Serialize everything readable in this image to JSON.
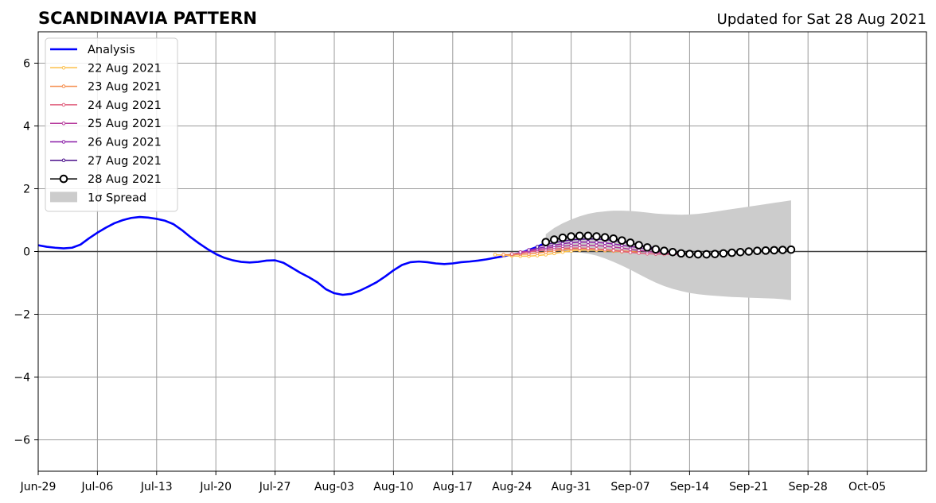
{
  "chart_data": {
    "type": "line",
    "title": "SCANDINAVIA PATTERN",
    "subtitle": "Updated for Sat 28 Aug 2021",
    "xlabel": "",
    "ylabel": "",
    "xlim": [
      "2021-06-29",
      "2021-10-12"
    ],
    "ylim": [
      -7,
      7
    ],
    "x_ticks": [
      "Jun-29",
      "Jul-06",
      "Jul-13",
      "Jul-20",
      "Jul-27",
      "Aug-03",
      "Aug-10",
      "Aug-17",
      "Aug-24",
      "Aug-31",
      "Sep-07",
      "Sep-14",
      "Sep-21",
      "Sep-28",
      "Oct-05"
    ],
    "x_tick_dates": [
      "2021-06-29",
      "2021-07-06",
      "2021-07-13",
      "2021-07-20",
      "2021-07-27",
      "2021-08-03",
      "2021-08-10",
      "2021-08-17",
      "2021-08-24",
      "2021-08-31",
      "2021-09-07",
      "2021-09-14",
      "2021-09-21",
      "2021-09-28",
      "2021-10-05"
    ],
    "y_ticks": [
      -6,
      -4,
      -2,
      0,
      2,
      4,
      6
    ],
    "y_tick_labels": [
      "−6",
      "−4",
      "−2",
      "0",
      "2",
      "4",
      "6"
    ],
    "grid": true,
    "legend_position": "top-left",
    "analysis": {
      "name": "Analysis",
      "color": "#0000ff",
      "x": [
        "2021-06-29",
        "2021-06-30",
        "2021-07-01",
        "2021-07-02",
        "2021-07-03",
        "2021-07-04",
        "2021-07-05",
        "2021-07-06",
        "2021-07-07",
        "2021-07-08",
        "2021-07-09",
        "2021-07-10",
        "2021-07-11",
        "2021-07-12",
        "2021-07-13",
        "2021-07-14",
        "2021-07-15",
        "2021-07-16",
        "2021-07-17",
        "2021-07-18",
        "2021-07-19",
        "2021-07-20",
        "2021-07-21",
        "2021-07-22",
        "2021-07-23",
        "2021-07-24",
        "2021-07-25",
        "2021-07-26",
        "2021-07-27",
        "2021-07-28",
        "2021-07-29",
        "2021-07-30",
        "2021-07-31",
        "2021-08-01",
        "2021-08-02",
        "2021-08-03",
        "2021-08-04",
        "2021-08-05",
        "2021-08-06",
        "2021-08-07",
        "2021-08-08",
        "2021-08-09",
        "2021-08-10",
        "2021-08-11",
        "2021-08-12",
        "2021-08-13",
        "2021-08-14",
        "2021-08-15",
        "2021-08-16",
        "2021-08-17",
        "2021-08-18",
        "2021-08-19",
        "2021-08-20",
        "2021-08-21",
        "2021-08-22",
        "2021-08-23",
        "2021-08-24",
        "2021-08-25",
        "2021-08-26",
        "2021-08-27",
        "2021-08-28"
      ],
      "y": [
        0.2,
        0.15,
        0.12,
        0.1,
        0.12,
        0.22,
        0.42,
        0.6,
        0.76,
        0.9,
        1.0,
        1.07,
        1.1,
        1.08,
        1.04,
        0.98,
        0.87,
        0.68,
        0.46,
        0.26,
        0.08,
        -0.08,
        -0.2,
        -0.28,
        -0.33,
        -0.35,
        -0.33,
        -0.29,
        -0.28,
        -0.36,
        -0.52,
        -0.68,
        -0.82,
        -0.98,
        -1.2,
        -1.33,
        -1.38,
        -1.35,
        -1.25,
        -1.12,
        -0.98,
        -0.8,
        -0.6,
        -0.43,
        -0.34,
        -0.32,
        -0.34,
        -0.38,
        -0.4,
        -0.38,
        -0.34,
        -0.32,
        -0.29,
        -0.25,
        -0.2,
        -0.15,
        -0.1,
        -0.05,
        0.05,
        0.15,
        0.28
      ]
    },
    "spread": {
      "name": "1σ Spread",
      "color": "#cccccc",
      "x": [
        "2021-08-28",
        "2021-08-29",
        "2021-08-30",
        "2021-08-31",
        "2021-09-01",
        "2021-09-02",
        "2021-09-03",
        "2021-09-04",
        "2021-09-05",
        "2021-09-06",
        "2021-09-07",
        "2021-09-08",
        "2021-09-09",
        "2021-09-10",
        "2021-09-11",
        "2021-09-12",
        "2021-09-13",
        "2021-09-14",
        "2021-09-15",
        "2021-09-16",
        "2021-09-17",
        "2021-09-18",
        "2021-09-19",
        "2021-09-20",
        "2021-09-21",
        "2021-09-22",
        "2021-09-23",
        "2021-09-24",
        "2021-09-25",
        "2021-09-26"
      ],
      "upper": [
        0.55,
        0.75,
        0.9,
        1.02,
        1.12,
        1.2,
        1.25,
        1.28,
        1.3,
        1.3,
        1.29,
        1.27,
        1.24,
        1.21,
        1.19,
        1.18,
        1.17,
        1.18,
        1.2,
        1.23,
        1.27,
        1.31,
        1.35,
        1.39,
        1.43,
        1.47,
        1.51,
        1.55,
        1.59,
        1.63
      ],
      "lower": [
        0.02,
        0.02,
        0.02,
        0.0,
        -0.03,
        -0.07,
        -0.13,
        -0.22,
        -0.33,
        -0.45,
        -0.58,
        -0.72,
        -0.86,
        -0.99,
        -1.1,
        -1.19,
        -1.26,
        -1.32,
        -1.36,
        -1.39,
        -1.41,
        -1.43,
        -1.45,
        -1.46,
        -1.47,
        -1.48,
        -1.49,
        -1.5,
        -1.52,
        -1.55
      ]
    },
    "forecasts": [
      {
        "name": "22 Aug 2021",
        "color": "#fcbf49",
        "x": [
          "2021-08-22",
          "2021-08-23",
          "2021-08-24",
          "2021-08-25",
          "2021-08-26",
          "2021-08-27",
          "2021-08-28",
          "2021-08-29",
          "2021-08-30",
          "2021-08-31",
          "2021-09-01",
          "2021-09-02",
          "2021-09-03",
          "2021-09-04",
          "2021-09-05",
          "2021-09-06",
          "2021-09-07"
        ],
        "y": [
          -0.1,
          -0.12,
          -0.14,
          -0.15,
          -0.15,
          -0.13,
          -0.1,
          -0.06,
          -0.02,
          0.02,
          0.04,
          0.05,
          0.04,
          0.03,
          0.01,
          -0.01,
          -0.02
        ]
      },
      {
        "name": "23 Aug 2021",
        "color": "#f58b4a",
        "x": [
          "2021-08-23",
          "2021-08-24",
          "2021-08-25",
          "2021-08-26",
          "2021-08-27",
          "2021-08-28",
          "2021-08-29",
          "2021-08-30",
          "2021-08-31",
          "2021-09-01",
          "2021-09-02",
          "2021-09-03",
          "2021-09-04",
          "2021-09-05",
          "2021-09-06",
          "2021-09-07",
          "2021-09-08"
        ],
        "y": [
          -0.1,
          -0.1,
          -0.09,
          -0.08,
          -0.05,
          -0.02,
          0.02,
          0.06,
          0.08,
          0.09,
          0.09,
          0.08,
          0.06,
          0.04,
          0.02,
          0.0,
          -0.02
        ]
      },
      {
        "name": "24 Aug 2021",
        "color": "#e0607e",
        "x": [
          "2021-08-24",
          "2021-08-25",
          "2021-08-26",
          "2021-08-27",
          "2021-08-28",
          "2021-08-29",
          "2021-08-30",
          "2021-08-31",
          "2021-09-01",
          "2021-09-02",
          "2021-09-03",
          "2021-09-04",
          "2021-09-05",
          "2021-09-06",
          "2021-09-07",
          "2021-09-08",
          "2021-09-09",
          "2021-09-10",
          "2021-09-11",
          "2021-09-12",
          "2021-09-13"
        ],
        "y": [
          -0.08,
          -0.05,
          -0.02,
          0.02,
          0.05,
          0.08,
          0.1,
          0.11,
          0.11,
          0.1,
          0.08,
          0.06,
          0.03,
          0.0,
          -0.03,
          -0.05,
          -0.07,
          -0.08,
          -0.09,
          -0.09,
          -0.09
        ]
      },
      {
        "name": "25 Aug 2021",
        "color": "#b5389b",
        "x": [
          "2021-08-25",
          "2021-08-26",
          "2021-08-27",
          "2021-08-28",
          "2021-08-29",
          "2021-08-30",
          "2021-08-31",
          "2021-09-01",
          "2021-09-02",
          "2021-09-03",
          "2021-09-04",
          "2021-09-05",
          "2021-09-06",
          "2021-09-07",
          "2021-09-08",
          "2021-09-09",
          "2021-09-10",
          "2021-09-11",
          "2021-09-12",
          "2021-09-13"
        ],
        "y": [
          -0.02,
          0.02,
          0.06,
          0.1,
          0.14,
          0.17,
          0.19,
          0.2,
          0.2,
          0.19,
          0.17,
          0.14,
          0.11,
          0.07,
          0.04,
          0.0,
          -0.03,
          -0.05,
          -0.07,
          -0.08
        ]
      },
      {
        "name": "26 Aug 2021",
        "color": "#8a1fa8",
        "x": [
          "2021-08-26",
          "2021-08-27",
          "2021-08-28",
          "2021-08-29",
          "2021-08-30",
          "2021-08-31",
          "2021-09-01",
          "2021-09-02",
          "2021-09-03",
          "2021-09-04",
          "2021-09-05",
          "2021-09-06",
          "2021-09-07",
          "2021-09-08",
          "2021-09-09",
          "2021-09-10",
          "2021-09-11"
        ],
        "y": [
          0.05,
          0.1,
          0.15,
          0.2,
          0.25,
          0.28,
          0.3,
          0.3,
          0.29,
          0.27,
          0.24,
          0.2,
          0.16,
          0.12,
          0.08,
          0.04,
          0.0
        ]
      },
      {
        "name": "27 Aug 2021",
        "color": "#4a0e8a",
        "x": [
          "2021-08-27",
          "2021-08-28",
          "2021-08-29",
          "2021-08-30",
          "2021-08-31",
          "2021-09-01",
          "2021-09-02",
          "2021-09-03",
          "2021-09-04",
          "2021-09-05",
          "2021-09-06",
          "2021-09-07",
          "2021-09-08",
          "2021-09-09",
          "2021-09-10"
        ],
        "y": [
          0.15,
          0.22,
          0.28,
          0.33,
          0.37,
          0.39,
          0.4,
          0.4,
          0.38,
          0.35,
          0.31,
          0.26,
          0.21,
          0.16,
          0.11
        ]
      }
    ],
    "latest": {
      "name": "28 Aug 2021",
      "color": "#000000",
      "x": [
        "2021-08-28",
        "2021-08-29",
        "2021-08-30",
        "2021-08-31",
        "2021-09-01",
        "2021-09-02",
        "2021-09-03",
        "2021-09-04",
        "2021-09-05",
        "2021-09-06",
        "2021-09-07",
        "2021-09-08",
        "2021-09-09",
        "2021-09-10",
        "2021-09-11",
        "2021-09-12",
        "2021-09-13",
        "2021-09-14",
        "2021-09-15",
        "2021-09-16",
        "2021-09-17",
        "2021-09-18",
        "2021-09-19",
        "2021-09-20",
        "2021-09-21",
        "2021-09-22",
        "2021-09-23",
        "2021-09-24",
        "2021-09-25",
        "2021-09-26"
      ],
      "y": [
        0.3,
        0.38,
        0.44,
        0.48,
        0.5,
        0.5,
        0.48,
        0.45,
        0.41,
        0.35,
        0.28,
        0.2,
        0.13,
        0.07,
        0.02,
        -0.02,
        -0.06,
        -0.08,
        -0.09,
        -0.09,
        -0.08,
        -0.06,
        -0.04,
        -0.02,
        0.0,
        0.02,
        0.03,
        0.04,
        0.05,
        0.06
      ]
    }
  }
}
